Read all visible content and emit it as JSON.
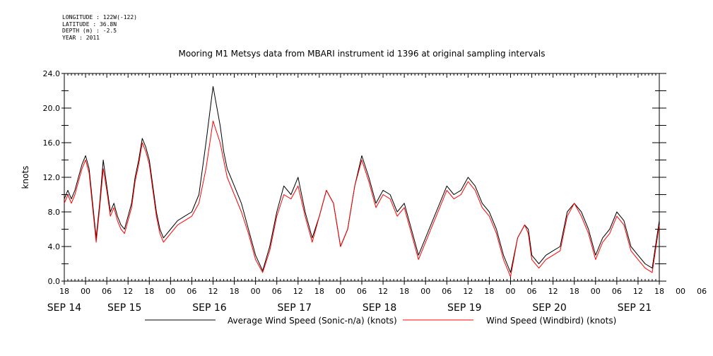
{
  "header": {
    "longitude": "LONGITUDE : 122W(-122)",
    "latitude": "LATITUDE : 36.8N",
    "depth": "DEPTH (m) : -2.5",
    "year": "YEAR : 2011"
  },
  "chart_data": {
    "type": "line",
    "title": "Mooring M1 Metsys data from MBARI instrument id 1396 at original sampling intervals",
    "ylabel": "knots",
    "xlabel": "",
    "ylim": [
      0,
      24
    ],
    "xlim_hours": [
      0,
      168
    ],
    "y_ticks": [
      "0.0",
      "4.0",
      "8.0",
      "12.0",
      "16.0",
      "20.0",
      "24.0"
    ],
    "x_hour_ticks": [
      "18",
      "00",
      "06",
      "12",
      "18",
      "00",
      "06",
      "12",
      "18",
      "00",
      "06",
      "12",
      "18",
      "00",
      "06",
      "12",
      "18",
      "00",
      "06",
      "12",
      "18",
      "00",
      "06",
      "12",
      "18",
      "00",
      "06",
      "12",
      "18",
      "00",
      "06",
      "12",
      "18"
    ],
    "x_day_labels": [
      {
        "label": "SEP 14",
        "hour": 0
      },
      {
        "label": "SEP 15",
        "hour": 17
      },
      {
        "label": "SEP 16",
        "hour": 41
      },
      {
        "label": "SEP 17",
        "hour": 65
      },
      {
        "label": "SEP 18",
        "hour": 89
      },
      {
        "label": "SEP 19",
        "hour": 113
      },
      {
        "label": "SEP 20",
        "hour": 137
      },
      {
        "label": "SEP 21",
        "hour": 161
      }
    ],
    "legend": {
      "placement": "bottom"
    },
    "series": [
      {
        "name": "Average Wind Speed (Sonic-n/a) (knots)",
        "color": "#000000",
        "x": [
          0,
          1,
          2,
          3,
          4,
          5,
          6,
          7,
          8,
          9,
          10,
          11,
          12,
          13,
          14,
          15,
          16,
          17,
          18,
          19,
          20,
          21,
          22,
          23,
          24,
          25,
          26,
          27,
          28,
          30,
          32,
          34,
          36,
          38,
          40,
          42,
          44,
          45,
          46,
          48,
          50,
          52,
          54,
          56,
          58,
          60,
          62,
          64,
          66,
          68,
          70,
          72,
          74,
          76,
          78,
          80,
          82,
          84,
          86,
          88,
          90,
          92,
          94,
          96,
          98,
          100,
          102,
          104,
          106,
          108,
          110,
          112,
          114,
          116,
          118,
          120,
          122,
          124,
          126,
          128,
          130,
          131,
          132,
          134,
          136,
          138,
          140,
          142,
          144,
          146,
          148,
          150,
          152,
          154,
          156,
          158,
          160,
          162,
          164,
          166,
          168
        ],
        "y": [
          9.5,
          10.5,
          9.5,
          10.5,
          12,
          13.5,
          14.5,
          13,
          9,
          5,
          9,
          14,
          11,
          8,
          9,
          7.5,
          6.5,
          6,
          7.5,
          9,
          12,
          14,
          16.5,
          15.5,
          14,
          11,
          8,
          6,
          5,
          6,
          7,
          7.5,
          8,
          10,
          16,
          22.5,
          18,
          15,
          13,
          11,
          9,
          6,
          3,
          1.2,
          4,
          8,
          11,
          10,
          12,
          8,
          5,
          7.5,
          10.5,
          9,
          4,
          6,
          11,
          14.5,
          12,
          9,
          10.5,
          10,
          8,
          9,
          6,
          3,
          5,
          7,
          9,
          11,
          10,
          10.5,
          12,
          11,
          9,
          8,
          6,
          3,
          1,
          5,
          6.5,
          6,
          3,
          2,
          3,
          3.5,
          4,
          8,
          9,
          8,
          6,
          3,
          5,
          6,
          8,
          7,
          4,
          3,
          2,
          1.5,
          7
        ]
      },
      {
        "name": "Wind Speed (Windbird) (knots)",
        "color": "#ff0000",
        "x": [
          0,
          1,
          2,
          3,
          4,
          5,
          6,
          7,
          8,
          9,
          10,
          11,
          12,
          13,
          14,
          15,
          16,
          17,
          18,
          19,
          20,
          21,
          22,
          23,
          24,
          25,
          26,
          27,
          28,
          30,
          32,
          34,
          36,
          38,
          40,
          42,
          44,
          45,
          46,
          48,
          50,
          52,
          54,
          56,
          58,
          60,
          62,
          64,
          66,
          68,
          70,
          72,
          74,
          76,
          78,
          80,
          82,
          84,
          86,
          88,
          90,
          92,
          94,
          96,
          98,
          100,
          102,
          104,
          106,
          108,
          110,
          112,
          114,
          116,
          118,
          120,
          122,
          124,
          126,
          128,
          130,
          131,
          132,
          134,
          136,
          138,
          140,
          142,
          144,
          146,
          148,
          150,
          152,
          154,
          156,
          158,
          160,
          162,
          164,
          166,
          168
        ],
        "y": [
          9,
          10,
          9,
          10,
          11.5,
          13,
          14,
          12.5,
          8.5,
          4.5,
          8.5,
          13,
          10.5,
          7.5,
          8.5,
          7,
          6,
          5.5,
          7,
          8.5,
          11.5,
          13.5,
          16,
          15,
          13.5,
          10.5,
          7.5,
          5.5,
          4.5,
          5.5,
          6.5,
          7,
          7.5,
          9,
          13,
          18.5,
          16,
          14,
          12,
          10,
          8,
          5.5,
          2.5,
          1,
          3.5,
          7.5,
          10,
          9.5,
          11,
          7.5,
          4.5,
          7.5,
          10.5,
          9,
          4,
          6,
          11,
          14,
          11.5,
          8.5,
          10,
          9.5,
          7.5,
          8.5,
          5.5,
          2.5,
          4.5,
          6.5,
          8.5,
          10.5,
          9.5,
          10,
          11.5,
          10.5,
          8.5,
          7.5,
          5.5,
          2.5,
          0.5,
          5,
          6.5,
          5.5,
          2.5,
          1.5,
          2.5,
          3,
          3.5,
          7.5,
          9,
          7.5,
          5.5,
          2.5,
          4.5,
          5.5,
          7.5,
          6.5,
          3.5,
          2.5,
          1.5,
          1,
          6.5
        ]
      }
    ]
  }
}
